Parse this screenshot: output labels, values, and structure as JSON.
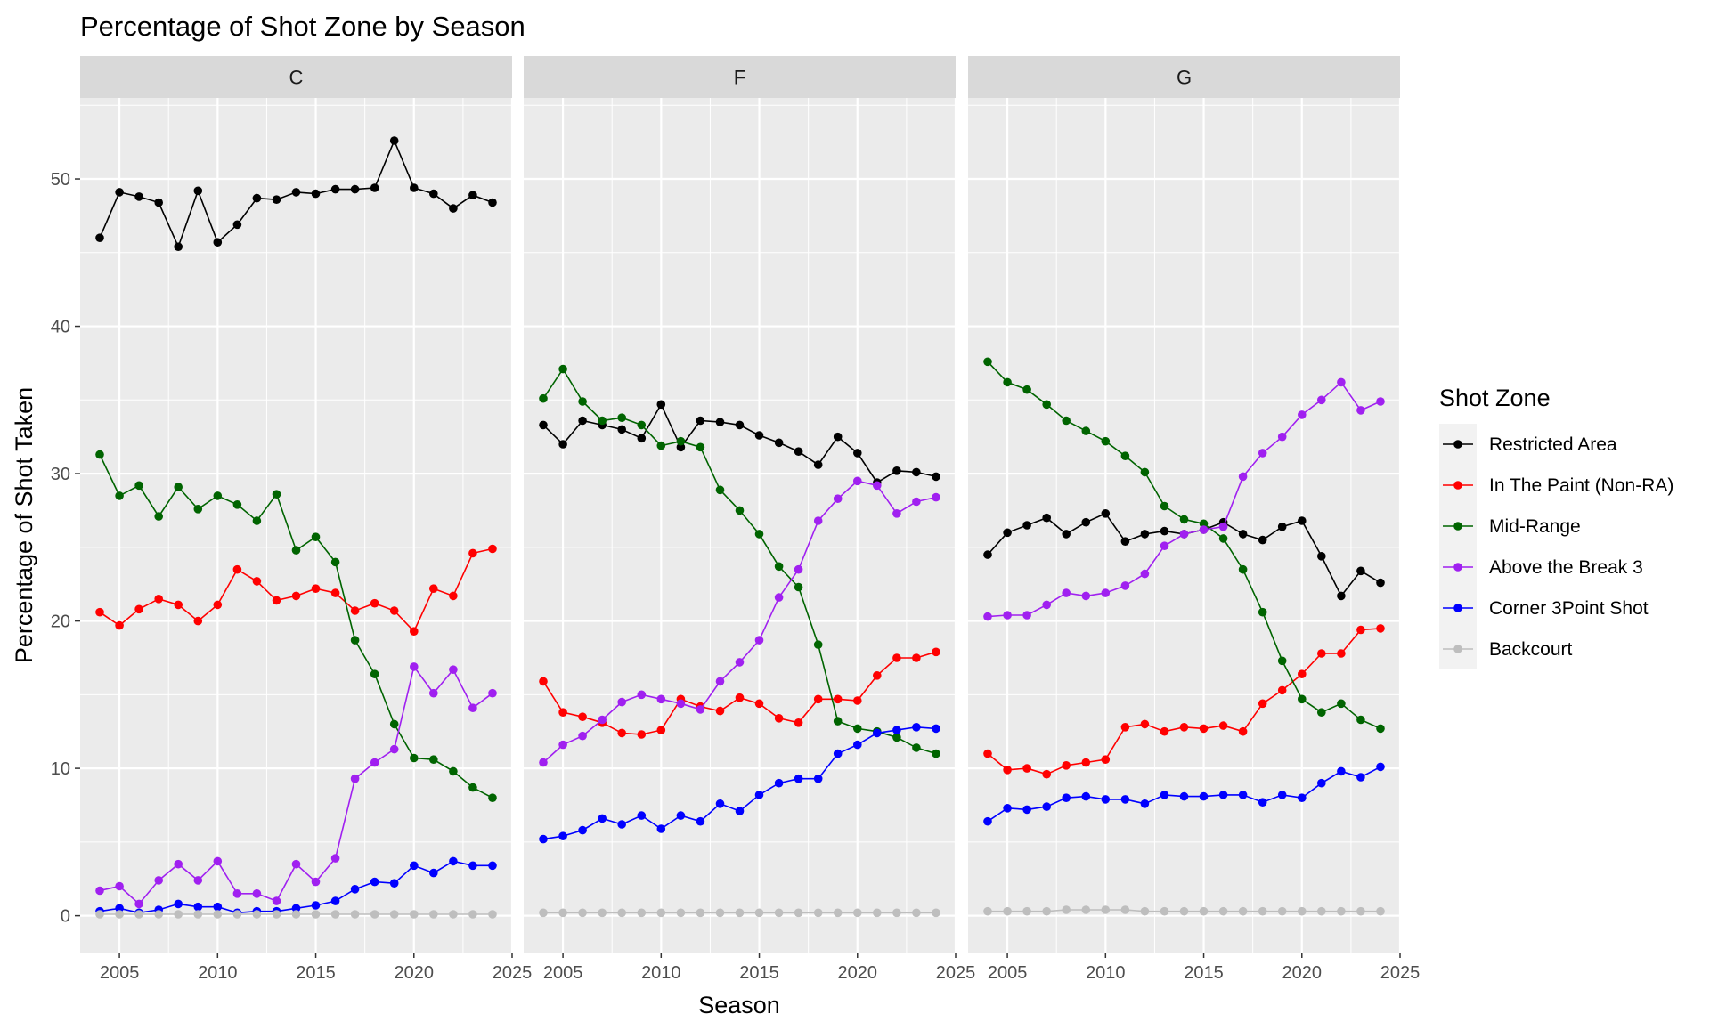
{
  "chart_data": {
    "type": "line",
    "title": "Percentage of Shot Zone by Season",
    "xlabel": "Season",
    "ylabel": "Percentage of Shot Taken",
    "xlim": [
      2003,
      2025
    ],
    "ylim": [
      -2.5,
      55.5
    ],
    "x_ticks": [
      2005,
      2010,
      2015,
      2020,
      2025
    ],
    "y_ticks": [
      0,
      10,
      20,
      30,
      40,
      50
    ],
    "grid": true,
    "legend_title": "Shot Zone",
    "legend_position": "right",
    "x": [
      2004,
      2005,
      2006,
      2007,
      2008,
      2009,
      2010,
      2011,
      2012,
      2013,
      2014,
      2015,
      2016,
      2017,
      2018,
      2019,
      2020,
      2021,
      2022,
      2023,
      2024
    ],
    "facets": [
      {
        "name": "C",
        "series": [
          {
            "name": "Restricted Area",
            "color": "#000000",
            "values": [
              46.0,
              49.1,
              48.8,
              48.4,
              45.4,
              49.2,
              45.7,
              46.9,
              48.7,
              48.6,
              49.1,
              49.0,
              49.3,
              49.3,
              49.4,
              52.6,
              49.4,
              49.0,
              48.0,
              48.9,
              48.4
            ]
          },
          {
            "name": "In The Paint (Non-RA)",
            "color": "#ff0000",
            "values": [
              20.6,
              19.7,
              20.8,
              21.5,
              21.1,
              20.0,
              21.1,
              23.5,
              22.7,
              21.4,
              21.7,
              22.2,
              21.9,
              20.7,
              21.2,
              20.7,
              19.3,
              22.2,
              21.7,
              24.6,
              24.9
            ]
          },
          {
            "name": "Mid-Range",
            "color": "#006400",
            "values": [
              31.3,
              28.5,
              29.2,
              27.1,
              29.1,
              27.6,
              28.5,
              27.9,
              26.8,
              28.6,
              24.8,
              25.7,
              24.0,
              18.7,
              16.4,
              13.0,
              10.7,
              10.6,
              9.8,
              8.7,
              8.0
            ]
          },
          {
            "name": "Above the Break 3",
            "color": "#a020f0",
            "values": [
              1.7,
              2.0,
              0.8,
              2.4,
              3.5,
              2.4,
              3.7,
              1.5,
              1.5,
              1.0,
              3.5,
              2.3,
              3.9,
              9.3,
              10.4,
              11.3,
              16.9,
              15.1,
              16.7,
              14.1,
              15.1
            ]
          },
          {
            "name": "Corner 3Point Shot",
            "color": "#0000ff",
            "values": [
              0.3,
              0.5,
              0.2,
              0.4,
              0.8,
              0.6,
              0.6,
              0.2,
              0.3,
              0.3,
              0.5,
              0.7,
              1.0,
              1.8,
              2.3,
              2.2,
              3.4,
              2.9,
              3.7,
              3.4,
              3.4
            ]
          },
          {
            "name": "Backcourt",
            "color": "#bebebe",
            "values": [
              0.1,
              0.1,
              0.1,
              0.1,
              0.1,
              0.1,
              0.1,
              0.1,
              0.1,
              0.1,
              0.1,
              0.1,
              0.1,
              0.1,
              0.1,
              0.1,
              0.1,
              0.1,
              0.1,
              0.1,
              0.1
            ]
          }
        ]
      },
      {
        "name": "F",
        "series": [
          {
            "name": "Restricted Area",
            "color": "#000000",
            "values": [
              33.3,
              32.0,
              33.6,
              33.3,
              33.0,
              32.4,
              34.7,
              31.8,
              33.6,
              33.5,
              33.3,
              32.6,
              32.1,
              31.5,
              30.6,
              32.5,
              31.4,
              29.4,
              30.2,
              30.1,
              29.8
            ]
          },
          {
            "name": "In The Paint (Non-RA)",
            "color": "#ff0000",
            "values": [
              15.9,
              13.8,
              13.5,
              13.1,
              12.4,
              12.3,
              12.6,
              14.7,
              14.2,
              13.9,
              14.8,
              14.4,
              13.4,
              13.1,
              14.7,
              14.7,
              14.6,
              16.3,
              17.5,
              17.5,
              17.9
            ]
          },
          {
            "name": "Mid-Range",
            "color": "#006400",
            "values": [
              35.1,
              37.1,
              34.9,
              33.6,
              33.8,
              33.3,
              31.9,
              32.2,
              31.8,
              28.9,
              27.5,
              25.9,
              23.7,
              22.3,
              18.4,
              13.2,
              12.7,
              12.5,
              12.1,
              11.4,
              11.0
            ]
          },
          {
            "name": "Above the Break 3",
            "color": "#a020f0",
            "values": [
              10.4,
              11.6,
              12.2,
              13.3,
              14.5,
              15.0,
              14.7,
              14.4,
              14.0,
              15.9,
              17.2,
              18.7,
              21.6,
              23.5,
              26.8,
              28.3,
              29.5,
              29.2,
              27.3,
              28.1,
              28.4
            ]
          },
          {
            "name": "Corner 3Point Shot",
            "color": "#0000ff",
            "values": [
              5.2,
              5.4,
              5.8,
              6.6,
              6.2,
              6.8,
              5.9,
              6.8,
              6.4,
              7.6,
              7.1,
              8.2,
              9.0,
              9.3,
              9.3,
              11.0,
              11.6,
              12.4,
              12.6,
              12.8,
              12.7
            ]
          },
          {
            "name": "Backcourt",
            "color": "#bebebe",
            "values": [
              0.2,
              0.2,
              0.2,
              0.2,
              0.2,
              0.2,
              0.2,
              0.2,
              0.2,
              0.2,
              0.2,
              0.2,
              0.2,
              0.2,
              0.2,
              0.2,
              0.2,
              0.2,
              0.2,
              0.2,
              0.2
            ]
          }
        ]
      },
      {
        "name": "G",
        "series": [
          {
            "name": "Restricted Area",
            "color": "#000000",
            "values": [
              24.5,
              26.0,
              26.5,
              27.0,
              25.9,
              26.7,
              27.3,
              25.4,
              25.9,
              26.1,
              25.9,
              26.2,
              26.7,
              25.9,
              25.5,
              26.4,
              26.8,
              24.4,
              21.7,
              23.4,
              22.6
            ]
          },
          {
            "name": "In The Paint (Non-RA)",
            "color": "#ff0000",
            "values": [
              11.0,
              9.9,
              10.0,
              9.6,
              10.2,
              10.4,
              10.6,
              12.8,
              13.0,
              12.5,
              12.8,
              12.7,
              12.9,
              12.5,
              14.4,
              15.3,
              16.4,
              17.8,
              17.8,
              19.4,
              19.5
            ]
          },
          {
            "name": "Mid-Range",
            "color": "#006400",
            "values": [
              37.6,
              36.2,
              35.7,
              34.7,
              33.6,
              32.9,
              32.2,
              31.2,
              30.1,
              27.8,
              26.9,
              26.6,
              25.6,
              23.5,
              20.6,
              17.3,
              14.7,
              13.8,
              14.4,
              13.3,
              12.7
            ]
          },
          {
            "name": "Above the Break 3",
            "color": "#a020f0",
            "values": [
              20.3,
              20.4,
              20.4,
              21.1,
              21.9,
              21.7,
              21.9,
              22.4,
              23.2,
              25.1,
              25.9,
              26.2,
              26.4,
              29.8,
              31.4,
              32.5,
              34.0,
              35.0,
              36.2,
              34.3,
              34.9
            ]
          },
          {
            "name": "Corner 3Point Shot",
            "color": "#0000ff",
            "values": [
              6.4,
              7.3,
              7.2,
              7.4,
              8.0,
              8.1,
              7.9,
              7.9,
              7.6,
              8.2,
              8.1,
              8.1,
              8.2,
              8.2,
              7.7,
              8.2,
              8.0,
              9.0,
              9.8,
              9.4,
              10.1
            ]
          },
          {
            "name": "Backcourt",
            "color": "#bebebe",
            "values": [
              0.3,
              0.3,
              0.3,
              0.3,
              0.4,
              0.4,
              0.4,
              0.4,
              0.3,
              0.3,
              0.3,
              0.3,
              0.3,
              0.3,
              0.3,
              0.3,
              0.3,
              0.3,
              0.3,
              0.3,
              0.3
            ]
          }
        ]
      }
    ]
  }
}
